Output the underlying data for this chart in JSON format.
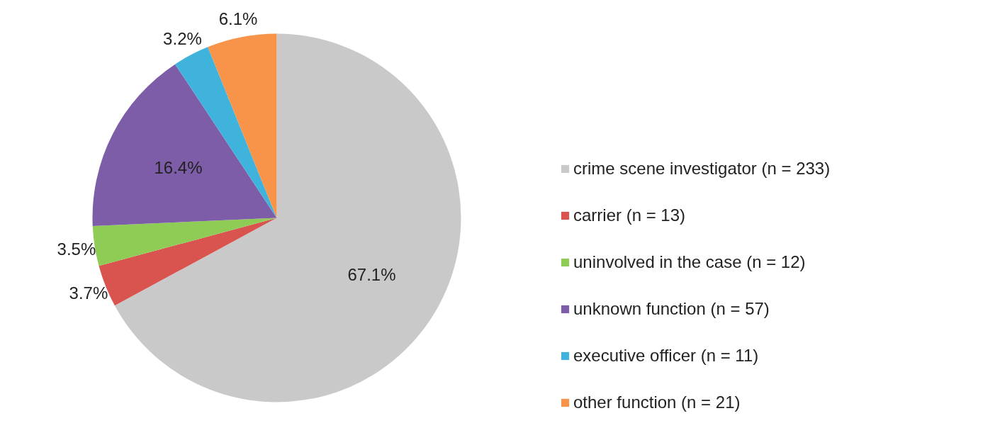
{
  "chart_data": {
    "type": "pie",
    "categories": [
      "crime scene investigator (n = 233)",
      "carrier (n = 13)",
      "uninvolved in the case (n = 12)",
      "unknown function (n = 57)",
      "executive officer (n = 11)",
      "other function (n = 21)"
    ],
    "values": [
      67.1,
      3.7,
      3.5,
      16.4,
      3.2,
      6.1
    ],
    "value_labels": [
      "67.1%",
      "3.7%",
      "3.5%",
      "16.4%",
      "3.2%",
      "6.1%"
    ],
    "colors": [
      "#c9c9c9",
      "#d9534f",
      "#8fcc55",
      "#7d5ca8",
      "#3fb3dc",
      "#f7944a"
    ],
    "legend": "right"
  }
}
